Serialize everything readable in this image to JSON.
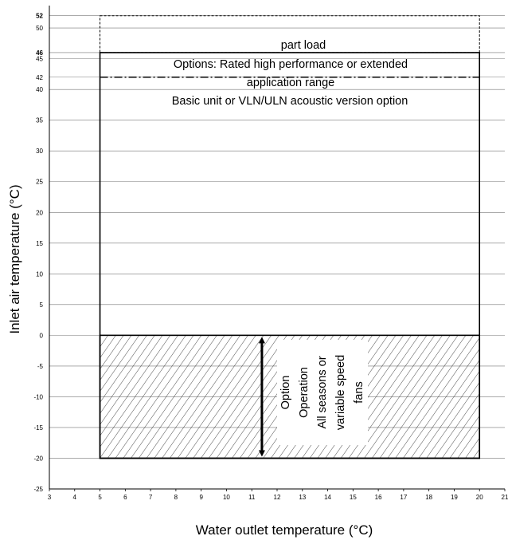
{
  "chart_data": {
    "type": "area",
    "xlabel": "Water outlet temperature (°C)",
    "ylabel": "Inlet air temperature (°C)",
    "xlim": [
      3,
      21
    ],
    "ylim": [
      -25,
      52
    ],
    "x_ticks": [
      3,
      4,
      5,
      6,
      7,
      8,
      9,
      10,
      11,
      12,
      13,
      14,
      15,
      16,
      17,
      18,
      19,
      20,
      21
    ],
    "y_ticks": [
      -25,
      -20,
      -15,
      -10,
      -5,
      0,
      5,
      10,
      15,
      20,
      25,
      30,
      35,
      40,
      42,
      45,
      46,
      50,
      52
    ],
    "y_bold_ticks": [
      46,
      52
    ],
    "grid": true,
    "regions": [
      {
        "label": "Basic unit or VLN/ULN acoustic version option",
        "x": [
          5,
          20
        ],
        "y": [
          -20,
          46
        ],
        "line": "solid"
      },
      {
        "label_lines": [
          "Options: Rated high performance or extended",
          "application range"
        ],
        "x": [
          5,
          20
        ],
        "y": [
          42,
          46
        ],
        "line": "dashdot"
      },
      {
        "label": "part load",
        "x": [
          5,
          20
        ],
        "y": [
          46,
          52
        ],
        "line": "dashed"
      },
      {
        "label_lines": [
          "Option",
          "Operation",
          "All seasons or",
          "variable speed",
          "fans"
        ],
        "x": [
          5,
          20
        ],
        "y": [
          -20,
          0
        ],
        "fill": "hatch"
      }
    ],
    "arrow": {
      "x": 11.4,
      "y_from": -20,
      "y_to": 0
    }
  }
}
